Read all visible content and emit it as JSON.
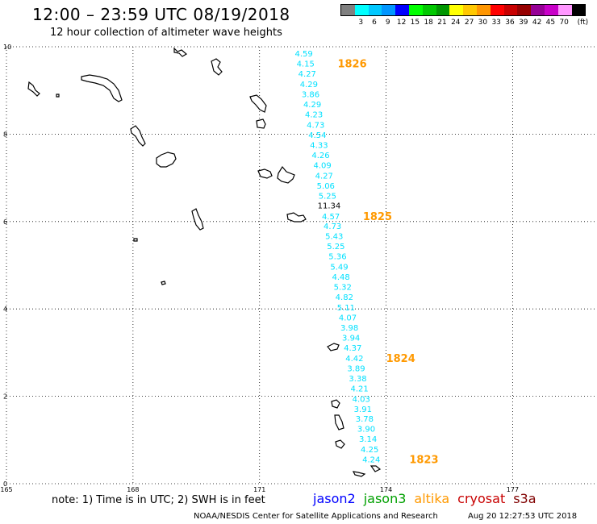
{
  "header": {
    "title": "12:00 – 23:59 UTC 08/19/2018",
    "subtitle": "12 hour collection of altimeter wave heights"
  },
  "legend": {
    "unit": "(ft)",
    "entries": [
      {
        "label": "",
        "color": "#808080"
      },
      {
        "label": "3",
        "color": "#00ffff"
      },
      {
        "label": "6",
        "color": "#00c8ff"
      },
      {
        "label": "9",
        "color": "#0096ff"
      },
      {
        "label": "12",
        "color": "#0000ff"
      },
      {
        "label": "15",
        "color": "#00ff00"
      },
      {
        "label": "18",
        "color": "#00c800"
      },
      {
        "label": "21",
        "color": "#009600"
      },
      {
        "label": "24",
        "color": "#ffff00"
      },
      {
        "label": "27",
        "color": "#ffc800"
      },
      {
        "label": "30",
        "color": "#ff9600"
      },
      {
        "label": "33",
        "color": "#ff0000"
      },
      {
        "label": "36",
        "color": "#c80000"
      },
      {
        "label": "39",
        "color": "#960000"
      },
      {
        "label": "42",
        "color": "#960096"
      },
      {
        "label": "45",
        "color": "#c800c8"
      },
      {
        "label": "70",
        "color": "#ff96ff"
      },
      {
        "label": "",
        "color": "#000000"
      }
    ]
  },
  "map": {
    "lon_ticks": [
      "165",
      "168",
      "171",
      "174",
      "177"
    ],
    "lat_ticks": [
      "0",
      "2",
      "4",
      "6",
      "8",
      "10"
    ],
    "lon_range": [
      165,
      179
    ],
    "lat_range": [
      0,
      10
    ],
    "grid": "dotted",
    "track_color": "#00e0ff",
    "time_label_color": "#ff9900",
    "wave_heights": [
      {
        "value": "4.59",
        "lat": 9.85,
        "lon": 172.05
      },
      {
        "value": "4.15",
        "lat": 9.62,
        "lon": 172.09
      },
      {
        "value": "4.27",
        "lat": 9.39,
        "lon": 172.13
      },
      {
        "value": "4.29",
        "lat": 9.15,
        "lon": 172.17
      },
      {
        "value": "3.86",
        "lat": 8.92,
        "lon": 172.21
      },
      {
        "value": "4.29",
        "lat": 8.69,
        "lon": 172.25
      },
      {
        "value": "4.23",
        "lat": 8.46,
        "lon": 172.29
      },
      {
        "value": "4.73",
        "lat": 8.22,
        "lon": 172.33
      },
      {
        "value": "4.54",
        "lat": 7.99,
        "lon": 172.37
      },
      {
        "value": "4.33",
        "lat": 7.76,
        "lon": 172.41
      },
      {
        "value": "4.26",
        "lat": 7.53,
        "lon": 172.45
      },
      {
        "value": "4.09",
        "lat": 7.3,
        "lon": 172.49
      },
      {
        "value": "4.27",
        "lat": 7.06,
        "lon": 172.53
      },
      {
        "value": "5.06",
        "lat": 6.83,
        "lon": 172.57
      },
      {
        "value": "5.25",
        "lat": 6.6,
        "lon": 172.61
      },
      {
        "value": "11.34",
        "lat": 6.37,
        "lon": 172.65,
        "color": "#000000"
      },
      {
        "value": "4.57",
        "lat": 6.13,
        "lon": 172.69
      },
      {
        "value": "4.73",
        "lat": 5.9,
        "lon": 172.73
      },
      {
        "value": "5.43",
        "lat": 5.67,
        "lon": 172.77
      },
      {
        "value": "5.25",
        "lat": 5.44,
        "lon": 172.81
      },
      {
        "value": "5.36",
        "lat": 5.21,
        "lon": 172.85
      },
      {
        "value": "5.49",
        "lat": 4.97,
        "lon": 172.89
      },
      {
        "value": "4.48",
        "lat": 4.74,
        "lon": 172.93
      },
      {
        "value": "5.32",
        "lat": 4.51,
        "lon": 172.97
      },
      {
        "value": "4.82",
        "lat": 4.28,
        "lon": 173.01
      },
      {
        "value": "5.11",
        "lat": 4.04,
        "lon": 173.05
      },
      {
        "value": "4.07",
        "lat": 3.81,
        "lon": 173.09
      },
      {
        "value": "3.98",
        "lat": 3.58,
        "lon": 173.13
      },
      {
        "value": "3.94",
        "lat": 3.35,
        "lon": 173.17
      },
      {
        "value": "4.37",
        "lat": 3.12,
        "lon": 173.21
      },
      {
        "value": "4.42",
        "lat": 2.88,
        "lon": 173.25
      },
      {
        "value": "3.89",
        "lat": 2.65,
        "lon": 173.29
      },
      {
        "value": "3.38",
        "lat": 2.42,
        "lon": 173.33
      },
      {
        "value": "4.21",
        "lat": 2.19,
        "lon": 173.37
      },
      {
        "value": "4.03",
        "lat": 1.95,
        "lon": 173.41
      },
      {
        "value": "3.91",
        "lat": 1.72,
        "lon": 173.45
      },
      {
        "value": "3.78",
        "lat": 1.49,
        "lon": 173.49
      },
      {
        "value": "3.90",
        "lat": 1.26,
        "lon": 173.53
      },
      {
        "value": "3.14",
        "lat": 1.03,
        "lon": 173.57
      },
      {
        "value": "4.25",
        "lat": 0.79,
        "lon": 173.61
      },
      {
        "value": "4.24",
        "lat": 0.56,
        "lon": 173.65
      }
    ],
    "time_labels": [
      {
        "value": "1826",
        "lat": 9.62,
        "lon": 172.85
      },
      {
        "value": "1825",
        "lat": 6.13,
        "lon": 173.45
      },
      {
        "value": "1824",
        "lat": 2.88,
        "lon": 174.0
      },
      {
        "value": "1823",
        "lat": 0.56,
        "lon": 174.55
      }
    ]
  },
  "footer": {
    "note": "note:  1) Time is in UTC;  2) SWH is in feet",
    "satellites": [
      {
        "name": "jason2",
        "color": "#0000ff"
      },
      {
        "name": "jason3",
        "color": "#00a000"
      },
      {
        "name": "altika",
        "color": "#ff9900"
      },
      {
        "name": "cryosat",
        "color": "#c80000"
      },
      {
        "name": "s3a",
        "color": "#800000"
      }
    ],
    "credit": "NOAA/NESDIS Center for Satellite Applications and Research",
    "timestamp": "Aug 20 12:27:53 UTC 2018"
  }
}
